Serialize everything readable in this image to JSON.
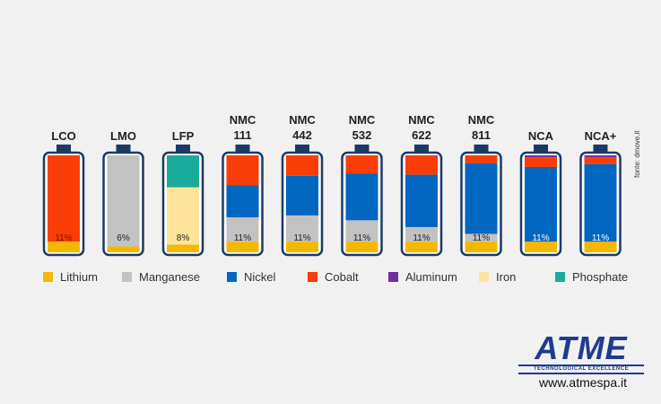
{
  "chart_data": {
    "type": "bar",
    "stacked": true,
    "unit": "%",
    "categories": [
      [
        "LCO"
      ],
      [
        "LMO"
      ],
      [
        "LFP"
      ],
      [
        "NMC",
        "111"
      ],
      [
        "NMC",
        "442"
      ],
      [
        "NMC",
        "532"
      ],
      [
        "NMC",
        "622"
      ],
      [
        "NMC",
        "811"
      ],
      [
        "NCA"
      ],
      [
        "NCA+"
      ]
    ],
    "series": [
      {
        "name": "Lithium",
        "color": "#f5b800",
        "values": [
          11,
          6,
          8,
          11,
          11,
          11,
          11,
          11,
          11,
          11
        ]
      },
      {
        "name": "Manganese",
        "color": "#c2c2c2",
        "values": [
          0,
          94,
          0,
          25,
          27,
          22,
          15,
          8,
          0,
          0
        ]
      },
      {
        "name": "Nickel",
        "color": "#0066c0",
        "values": [
          0,
          0,
          0,
          33,
          41,
          48,
          54,
          73,
          77,
          80
        ]
      },
      {
        "name": "Cobalt",
        "color": "#fa3c06",
        "values": [
          89,
          0,
          0,
          31,
          21,
          19,
          20,
          8,
          10,
          7
        ]
      },
      {
        "name": "Aluminum",
        "color": "#7030a0",
        "values": [
          0,
          0,
          0,
          0,
          0,
          0,
          0,
          0,
          2,
          2
        ]
      },
      {
        "name": "Iron",
        "color": "#fde49a",
        "values": [
          0,
          0,
          59,
          0,
          0,
          0,
          0,
          0,
          0,
          0
        ]
      },
      {
        "name": "Phosphate",
        "color": "#1aab9b",
        "values": [
          0,
          0,
          33,
          0,
          0,
          0,
          0,
          0,
          0,
          0
        ]
      }
    ],
    "data_labels": [
      "11%",
      "6%",
      "8%",
      "11%",
      "11%",
      "11%",
      "11%",
      "11%",
      "11%",
      "11%"
    ],
    "legend_position": "bottom",
    "grid": false
  },
  "source_note": "fonte: dmove.it",
  "logo": {
    "name": "ATME",
    "tagline": "TECHNOLOGICAL EXCELLENCE"
  },
  "website": "www.atmespa.it",
  "colors": {
    "frame": "#1c3a66",
    "background": "#f1f1f1",
    "brand": "#1f3c8f"
  }
}
